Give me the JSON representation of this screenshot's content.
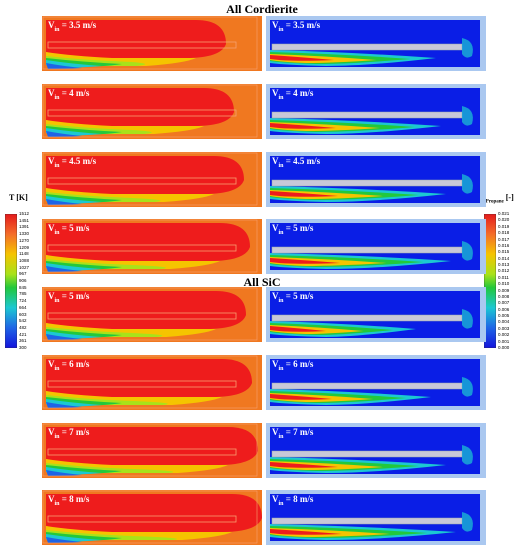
{
  "sections": {
    "top_title": "All Cordierite",
    "bottom_title": "All SiC"
  },
  "temperature_colorbar": {
    "title_main": "T [K]",
    "ticks": [
      "1512",
      "1451",
      "1391",
      "1330",
      "1270",
      "1209",
      "1148",
      "1088",
      "1027",
      "967",
      "906",
      "845",
      "785",
      "724",
      "664",
      "603",
      "542",
      "482",
      "421",
      "361",
      "300"
    ]
  },
  "propane_colorbar": {
    "title_main": "X",
    "title_sub": "Propane",
    "title_unit": " [-]",
    "ticks": [
      "0.021",
      "0.020",
      "0.019",
      "0.018",
      "0.017",
      "0.016",
      "0.015",
      "0.014",
      "0.013",
      "0.012",
      "0.011",
      "0.010",
      "0.009",
      "0.008",
      "0.007",
      "0.006",
      "0.005",
      "0.004",
      "0.003",
      "0.002",
      "0.001",
      "0.000"
    ]
  },
  "rows": [
    {
      "prefix": "V",
      "sub": "in",
      "value": " = 3.5 m/s"
    },
    {
      "prefix": "V",
      "sub": "in",
      "value": " = 4 m/s"
    },
    {
      "prefix": "V",
      "sub": "in",
      "value": " = 4.5 m/s"
    },
    {
      "prefix": "V",
      "sub": "in",
      "value": " = 5 m/s"
    },
    {
      "prefix": "V",
      "sub": "in",
      "value": " = 5 m/s"
    },
    {
      "prefix": "V",
      "sub": "in",
      "value": " = 6 m/s"
    },
    {
      "prefix": "V",
      "sub": "in",
      "value": " = 7 m/s"
    },
    {
      "prefix": "V",
      "sub": "in",
      "value": " = 8 m/s"
    }
  ],
  "colors": {
    "hot_red": "#ee1c1c",
    "orange": "#f07820",
    "deep_blue": "#0a1ee6",
    "light_blue_frame": "#aac8f0",
    "plate_gray": "#c8c8d8"
  }
}
